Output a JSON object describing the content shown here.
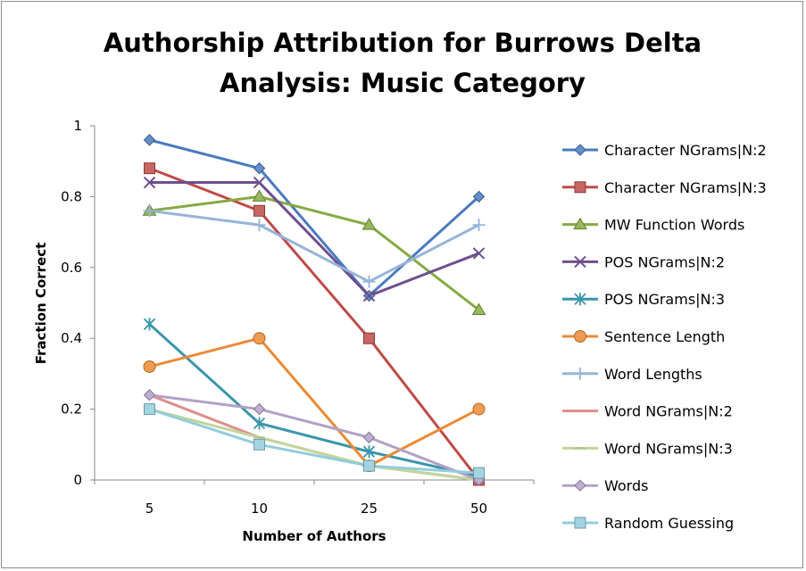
{
  "chart_data": {
    "type": "line",
    "title_line1": "Authorship Attribution for Burrows Delta",
    "title_line2": "Analysis: Music Category",
    "xlabel": "Number of Authors",
    "ylabel": "Fraction Correct",
    "categories": [
      "5",
      "10",
      "25",
      "50"
    ],
    "ylim": [
      0,
      1
    ],
    "yticks": [
      "0",
      "0.2",
      "0.4",
      "0.6",
      "0.8",
      "1"
    ],
    "grid": false,
    "legend_position": "right",
    "series": [
      {
        "name": "Character NGrams|N:2",
        "values": [
          0.96,
          0.88,
          0.52,
          0.8
        ],
        "color": "#4a7bbf",
        "marker": "diamond"
      },
      {
        "name": "Character NGrams|N:3",
        "values": [
          0.88,
          0.76,
          0.4,
          0.0
        ],
        "color": "#be4b48",
        "marker": "square"
      },
      {
        "name": "MW Function Words",
        "values": [
          0.76,
          0.8,
          0.72,
          0.48
        ],
        "color": "#86aa43",
        "marker": "triangle"
      },
      {
        "name": "POS NGrams|N:2",
        "values": [
          0.84,
          0.84,
          0.52,
          0.64
        ],
        "color": "#6e4f8e",
        "marker": "x"
      },
      {
        "name": "POS NGrams|N:3",
        "values": [
          0.44,
          0.16,
          0.08,
          0.01
        ],
        "color": "#3a95ab",
        "marker": "star"
      },
      {
        "name": "Sentence Length",
        "values": [
          0.32,
          0.4,
          0.04,
          0.2
        ],
        "color": "#ec8a35",
        "marker": "circle"
      },
      {
        "name": "Word Lengths",
        "values": [
          0.76,
          0.72,
          0.56,
          0.72
        ],
        "color": "#97b4d9",
        "marker": "plus"
      },
      {
        "name": "Word NGrams|N:2",
        "values": [
          0.24,
          0.12,
          0.04,
          0.0
        ],
        "color": "#dc8e8c",
        "marker": "none"
      },
      {
        "name": "Word NGrams|N:3",
        "values": [
          0.2,
          0.12,
          0.04,
          0.0
        ],
        "color": "#c2d69a",
        "marker": "dash"
      },
      {
        "name": "Words",
        "values": [
          0.24,
          0.2,
          0.12,
          0.0
        ],
        "color": "#b2a1c7",
        "marker": "diamond"
      },
      {
        "name": "Random Guessing",
        "values": [
          0.2,
          0.1,
          0.04,
          0.02
        ],
        "color": "#92cddc",
        "marker": "square"
      }
    ]
  }
}
